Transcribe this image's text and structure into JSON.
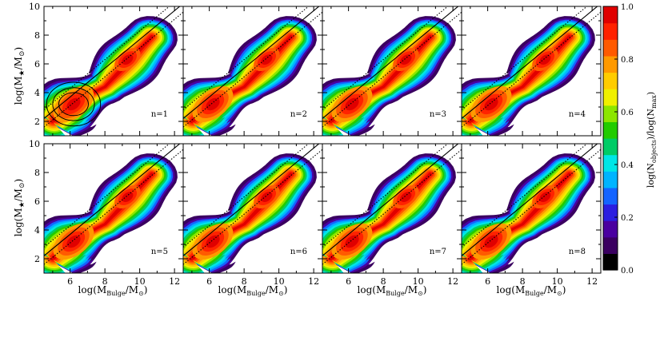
{
  "figure": {
    "ylabel_text": "log(M",
    "ylabel_sub": "★",
    "ylabel_tail": "/M",
    "ylabel_sun_sub": "⊙",
    "ylabel_close": ")",
    "xlabel_text": "log(M",
    "xlabel_sub": "Bulge",
    "xlabel_tail": "/M",
    "xlabel_sun_sub": "⊙",
    "xlabel_close": ")",
    "colorbar_label_1": "log(N",
    "colorbar_label_sub1": "objects",
    "colorbar_label_2": ")/log(N",
    "colorbar_label_sub2": "max",
    "colorbar_label_3": ")"
  },
  "chart_data": {
    "type": "heatmap",
    "layout": "2x4 panel grid, shared axes",
    "xlim": [
      4.5,
      12.5
    ],
    "ylim": [
      1,
      10
    ],
    "xticks": [
      "6",
      "8",
      "10",
      "12"
    ],
    "yticks": [
      "2",
      "4",
      "6",
      "8",
      "10"
    ],
    "panels": [
      {
        "label": "n=1",
        "contours": true
      },
      {
        "label": "n=2",
        "contours": false
      },
      {
        "label": "n=3",
        "contours": false
      },
      {
        "label": "n=4",
        "contours": false
      },
      {
        "label": "n=5",
        "contours": false
      },
      {
        "label": "n=6",
        "contours": false
      },
      {
        "label": "n=7",
        "contours": false
      },
      {
        "label": "n=8",
        "contours": false
      }
    ],
    "density_ridge": [
      [
        5.0,
        2.0
      ],
      [
        6.0,
        3.2
      ],
      [
        8.0,
        4.4
      ],
      [
        9.5,
        6.3
      ],
      [
        10.7,
        7.9
      ]
    ],
    "density_peaks": [
      {
        "x": 6.2,
        "y": 3.2,
        "level": 1.0
      },
      {
        "x": 9.3,
        "y": 6.3,
        "level": 0.82
      }
    ],
    "relation_lines": [
      {
        "style": "solid",
        "intercept": -2.3,
        "slope": 1.0
      },
      {
        "style": "dotted",
        "intercept": -1.7,
        "slope": 1.0
      },
      {
        "style": "dotted",
        "intercept": -2.9,
        "slope": 1.0
      }
    ],
    "colorbar": {
      "range": [
        0.0,
        1.0
      ],
      "ticks": [
        "0.0",
        "0.2",
        "0.4",
        "0.6",
        "0.8",
        "1.0"
      ],
      "colors": [
        "#000000",
        "#3a0060",
        "#4a00a0",
        "#2b1ee0",
        "#1464ff",
        "#00b4ff",
        "#00e6e6",
        "#00cc66",
        "#22cc00",
        "#8ce600",
        "#f0f000",
        "#ffcc00",
        "#ff9900",
        "#ff5a00",
        "#ff2200",
        "#e00000"
      ]
    }
  }
}
